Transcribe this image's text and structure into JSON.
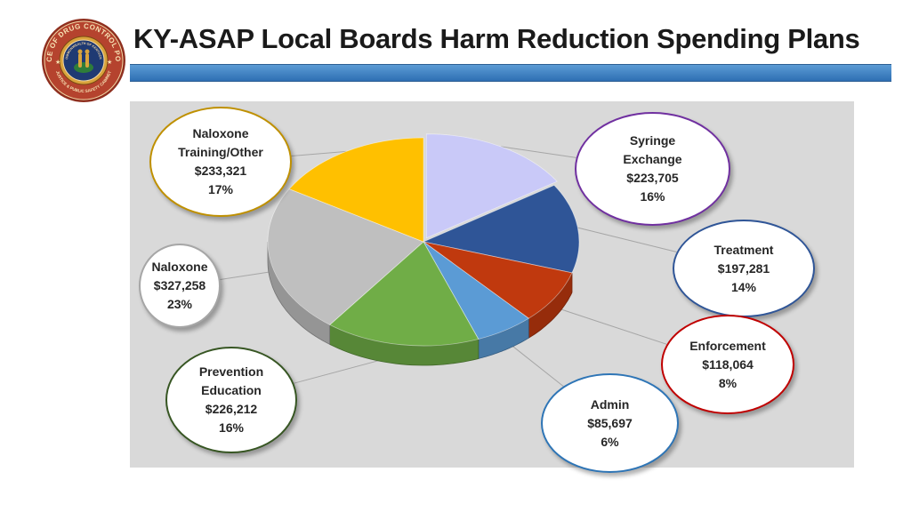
{
  "header": {
    "title": "KY-ASAP Local Boards Harm Reduction Spending Plans"
  },
  "seal": {
    "ring_text_top": "OFFICE OF DRUG CONTROL POLICY",
    "ring_text_bottom": "JUSTICE & PUBLIC SAFETY CABINET",
    "inner_text": "COMMONWEALTH OF KENTUCKY",
    "colors": {
      "ring": "#b5432e",
      "inner": "#1f3a73",
      "gold": "#d9a43c"
    }
  },
  "chart_data": {
    "type": "pie",
    "style": "3d-exploded",
    "legend": "callout-bubbles",
    "slices": [
      {
        "label": "Syringe Exchange",
        "label_lines": [
          "Syringe",
          "Exchange"
        ],
        "value": 223705,
        "value_text": "$223,705",
        "percent_text": "16%",
        "color": "#c9c9f8",
        "border": "#7030a0"
      },
      {
        "label": "Treatment",
        "label_lines": [
          "Treatment"
        ],
        "value": 197281,
        "value_text": "$197,281",
        "percent_text": "14%",
        "color": "#2f5597",
        "border": "#2f5597"
      },
      {
        "label": "Enforcement",
        "label_lines": [
          "Enforcement"
        ],
        "value": 118064,
        "value_text": "$118,064",
        "percent_text": "8%",
        "color": "#c0390e",
        "border": "#c00000"
      },
      {
        "label": "Admin",
        "label_lines": [
          "Admin"
        ],
        "value": 85697,
        "value_text": "$85,697",
        "percent_text": "6%",
        "color": "#5b9bd5",
        "border": "#2e75b6"
      },
      {
        "label": "Prevention Education",
        "label_lines": [
          "Prevention",
          "Education"
        ],
        "value": 226212,
        "value_text": "$226,212",
        "percent_text": "16%",
        "color": "#70ad47",
        "border": "#375623"
      },
      {
        "label": "Naloxone",
        "label_lines": [
          "Naloxone"
        ],
        "value": 327258,
        "value_text": "$327,258",
        "percent_text": "23%",
        "color": "#bfbfbf",
        "border": "#a6a6a6"
      },
      {
        "label": "Naloxone Training/Other",
        "label_lines": [
          "Naloxone",
          "Training/Other"
        ],
        "value": 233321,
        "value_text": "$233,321",
        "percent_text": "17%",
        "color": "#ffc000",
        "border": "#bf9000"
      }
    ]
  }
}
